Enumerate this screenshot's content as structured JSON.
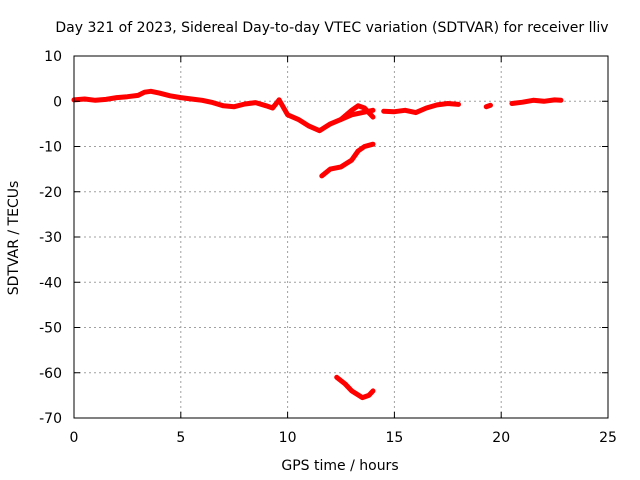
{
  "chart_data": {
    "type": "scatter",
    "title": "Day 321 of 2023, Sidereal Day-to-day VTEC variation (SDTVAR) for receiver lliv",
    "xlabel": "GPS time / hours",
    "ylabel": "SDTVAR / TECUs",
    "xlim": [
      0,
      25
    ],
    "ylim": [
      -70,
      10
    ],
    "xticks": [
      0,
      5,
      10,
      15,
      20,
      25
    ],
    "yticks": [
      10,
      0,
      -10,
      -20,
      -30,
      -40,
      -50,
      -60,
      -70
    ],
    "xtick_labels": [
      "0",
      "5",
      "10",
      "15",
      "20",
      "25"
    ],
    "ytick_labels": [
      "10",
      "0",
      "-10",
      "-20",
      "-30",
      "-40",
      "-50",
      "-60",
      "-70"
    ],
    "grid": true,
    "color": "#ff0000",
    "series": [
      {
        "name": "main-track-1",
        "x": [
          0,
          0.5,
          1,
          1.5,
          2,
          2.5,
          3,
          3.3,
          3.6,
          4,
          4.5,
          5,
          5.5,
          6,
          6.5,
          7,
          7.5,
          8,
          8.5,
          9,
          9.3,
          9.6
        ],
        "y": [
          0.3,
          0.5,
          0.2,
          0.4,
          0.8,
          1.0,
          1.3,
          2.0,
          2.2,
          1.8,
          1.2,
          0.8,
          0.5,
          0.2,
          -0.3,
          -1.0,
          -1.2,
          -0.6,
          -0.3,
          -1.0,
          -1.5,
          0.3
        ]
      },
      {
        "name": "main-track-2",
        "x": [
          9.6,
          10,
          10.5,
          11,
          11.5,
          12,
          12.5,
          13,
          13.5,
          14
        ],
        "y": [
          0.3,
          -3.0,
          -4.0,
          -5.5,
          -6.5,
          -5.0,
          -4.0,
          -3.0,
          -2.5,
          -2.0
        ]
      },
      {
        "name": "upper-dip-branch",
        "x": [
          12.5,
          13,
          13.3,
          13.6,
          14
        ],
        "y": [
          -4.0,
          -2.0,
          -1.0,
          -1.5,
          -3.5
        ]
      },
      {
        "name": "middle-segment",
        "x": [
          11.6,
          12,
          12.5,
          13,
          13.3,
          13.6,
          14
        ],
        "y": [
          -16.5,
          -15.0,
          -14.5,
          -13.0,
          -11.0,
          -10.0,
          -9.5
        ]
      },
      {
        "name": "low-segment",
        "x": [
          12.3,
          12.7,
          13.0,
          13.5,
          13.8,
          14.0
        ],
        "y": [
          -61.0,
          -62.5,
          -64.0,
          -65.5,
          -65.0,
          -64.0
        ]
      },
      {
        "name": "afternoon-segment",
        "x": [
          14.5,
          15,
          15.5,
          16,
          16.5,
          17,
          17.5,
          18.0
        ],
        "y": [
          -2.2,
          -2.3,
          -2.0,
          -2.5,
          -1.5,
          -0.8,
          -0.5,
          -0.7
        ]
      },
      {
        "name": "isolated-point",
        "x": [
          19.3,
          19.5
        ],
        "y": [
          -1.2,
          -0.9
        ]
      },
      {
        "name": "evening-segment",
        "x": [
          20.5,
          21,
          21.5,
          22,
          22.5,
          22.8
        ],
        "y": [
          -0.5,
          -0.2,
          0.2,
          0.0,
          0.3,
          0.2
        ]
      }
    ]
  }
}
